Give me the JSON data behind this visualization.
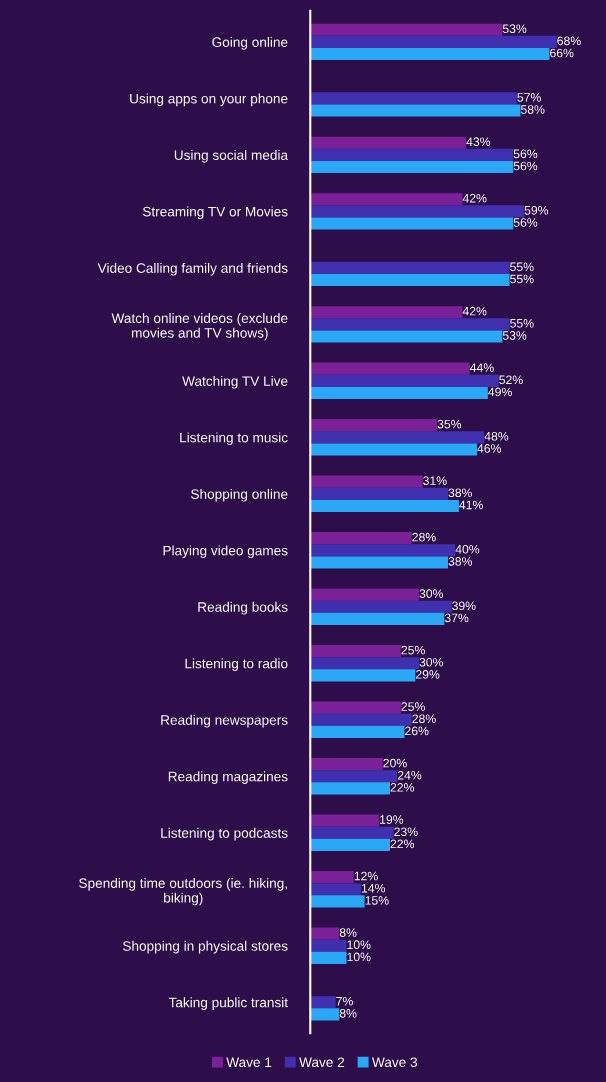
{
  "chart_data": {
    "type": "bar",
    "orientation": "horizontal",
    "legend": "bottom",
    "grid": false,
    "categories": [
      "Going online",
      "Using apps on your phone",
      "Using social media",
      "Streaming TV or Movies",
      "Video Calling family and friends",
      "Watch online videos (exclude\nmovies and TV shows)",
      "Watching TV Live",
      "Listening to music",
      "Shopping online",
      "Playing video games",
      "Reading books",
      "Listening to radio",
      "Reading newspapers",
      "Reading magazines",
      "Listening to podcasts",
      "Spending time outdoors (ie. hiking,\nbiking)",
      "Shopping in physical stores",
      "Taking public transit"
    ],
    "series": [
      {
        "name": "Wave 1",
        "color": "#7a2198",
        "values": [
          53,
          null,
          43,
          42,
          null,
          42,
          44,
          35,
          31,
          28,
          30,
          25,
          25,
          20,
          19,
          12,
          8,
          null
        ],
        "value_labels": [
          "53%",
          null,
          "43%",
          "42%",
          null,
          "42%",
          "44%",
          "35%",
          "31%",
          "28%",
          "30%",
          "25%",
          "25%",
          "20%",
          "19%",
          "12%",
          "8%",
          null
        ]
      },
      {
        "name": "Wave 2",
        "color": "#4030b0",
        "values": [
          68,
          57,
          56,
          59,
          55,
          55,
          52,
          48,
          38,
          40,
          39,
          30,
          28,
          24,
          23,
          14,
          10,
          7
        ],
        "value_labels": [
          "68%",
          "57%",
          "56%",
          "59%",
          "55%",
          "55%",
          "52%",
          "48%",
          "38%",
          "40%",
          "39%",
          "30%",
          "28%",
          "24%",
          "23%",
          "14%",
          "10%",
          "7%"
        ]
      },
      {
        "name": "Wave 3",
        "color": "#2ba8f5",
        "values": [
          66,
          58,
          56,
          56,
          55,
          53,
          49,
          46,
          41,
          38,
          37,
          29,
          26,
          22,
          22,
          15,
          10,
          8
        ],
        "value_labels": [
          "66%",
          "58%",
          "56%",
          "56%",
          "55%",
          "53%",
          "49%",
          "46%",
          "41%",
          "38%",
          "37%",
          "29%",
          "26%",
          "22%",
          "22%",
          "15%",
          "10%",
          "8%"
        ]
      }
    ]
  }
}
